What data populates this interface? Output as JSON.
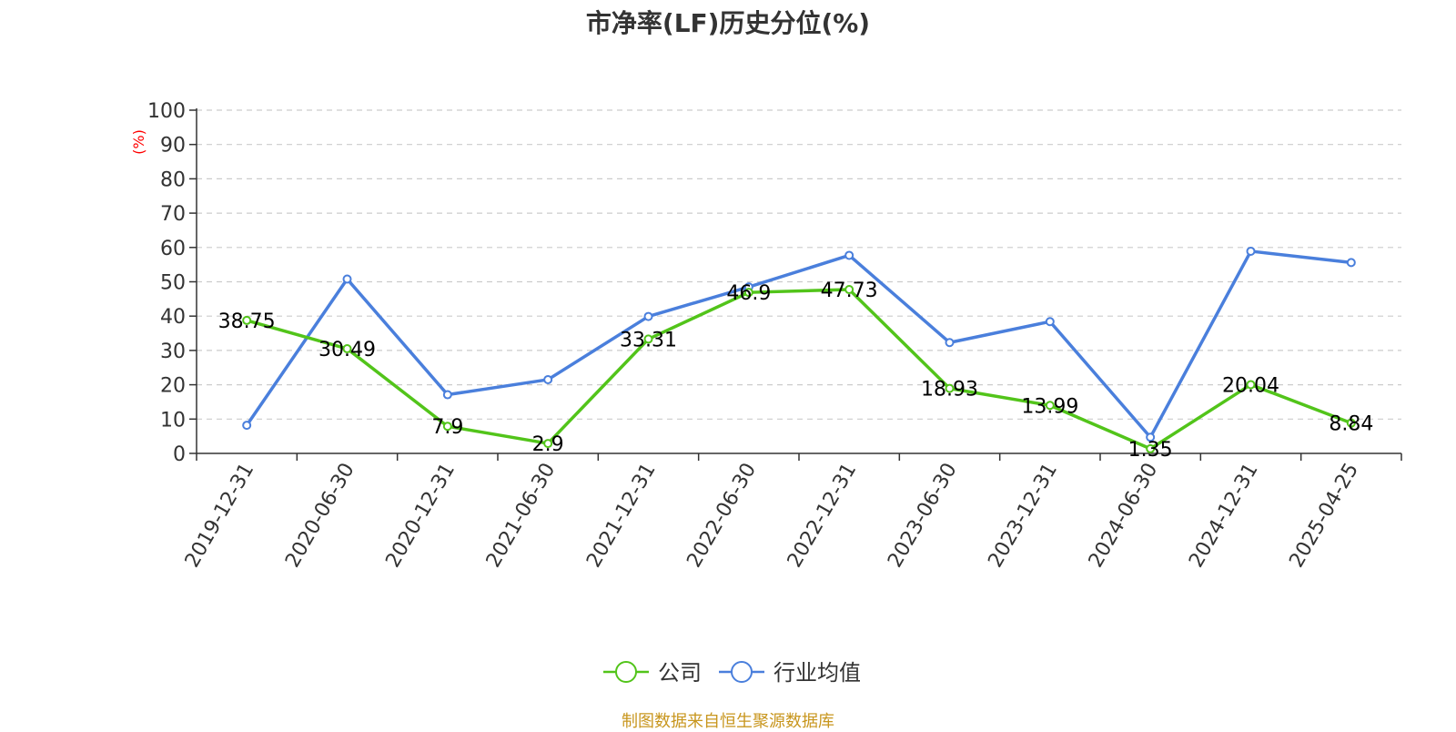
{
  "title": "市净率(LF)历史分位(%)",
  "footer": "制图数据来自恒生聚源数据库",
  "chart_data": {
    "type": "line",
    "title": "市净率(LF)历史分位(%)",
    "ylabel": "(%)",
    "xlabel": "",
    "ylim": [
      0,
      100
    ],
    "yticks": [
      0,
      10,
      20,
      30,
      40,
      50,
      60,
      70,
      80,
      90,
      100
    ],
    "grid": true,
    "legend_position": "bottom",
    "categories": [
      "2019-12-31",
      "2020-06-30",
      "2020-12-31",
      "2021-06-30",
      "2021-12-31",
      "2022-06-30",
      "2022-12-31",
      "2023-06-30",
      "2023-12-31",
      "2024-06-30",
      "2024-12-31",
      "2025-04-25"
    ],
    "series": [
      {
        "name": "公司",
        "color": "#52c41a",
        "values": [
          38.75,
          30.49,
          7.9,
          2.9,
          33.31,
          46.9,
          47.73,
          18.93,
          13.99,
          1.35,
          20.04,
          8.84
        ],
        "labels": [
          "38.75",
          "30.49",
          "7.9",
          "2.9",
          "33.31",
          "46.9",
          "47.73",
          "18.93",
          "13.99",
          "1.35",
          "20.04",
          "8.84"
        ]
      },
      {
        "name": "行业均值",
        "color": "#4a7fdc",
        "values": [
          8.2,
          50.8,
          17.1,
          21.5,
          39.9,
          48.5,
          57.7,
          32.3,
          38.4,
          4.7,
          58.9,
          55.6
        ]
      }
    ]
  }
}
